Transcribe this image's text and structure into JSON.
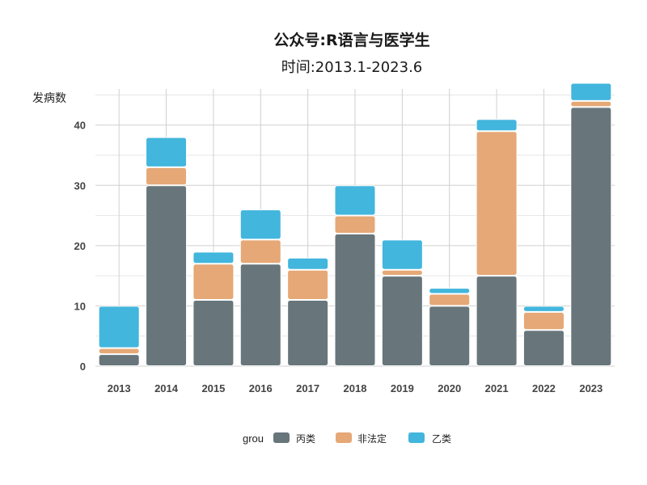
{
  "colors": {
    "丙类": "#68767b",
    "非法定": "#e5a876",
    "乙类": "#42b6dd",
    "grid_major": "#d0d0d0",
    "grid_minor": "#e6e6e6",
    "background": "#ffffff"
  },
  "chart_data": {
    "type": "bar",
    "stacked": true,
    "title": "公众号:R语言与医学生",
    "subtitle": "时间:2013.1-2023.6",
    "xlabel": "",
    "ylabel": "发病数",
    "ylim": [
      0,
      46
    ],
    "yticks": [
      0,
      10,
      20,
      30,
      40
    ],
    "grid": true,
    "legend_position": "bottom",
    "legend_title": "grou",
    "categories": [
      "2013",
      "2014",
      "2015",
      "2016",
      "2017",
      "2018",
      "2019",
      "2020",
      "2021",
      "2022",
      "2023"
    ],
    "series": [
      {
        "name": "丙类",
        "values": [
          2,
          30,
          11,
          17,
          11,
          22,
          15,
          10,
          15,
          6,
          43
        ]
      },
      {
        "name": "非法定",
        "values": [
          1,
          3,
          6,
          4,
          5,
          3,
          1,
          2,
          24,
          3,
          1
        ]
      },
      {
        "name": "乙类",
        "values": [
          7,
          5,
          2,
          5,
          2,
          5,
          5,
          1,
          2,
          1,
          3
        ]
      }
    ]
  }
}
